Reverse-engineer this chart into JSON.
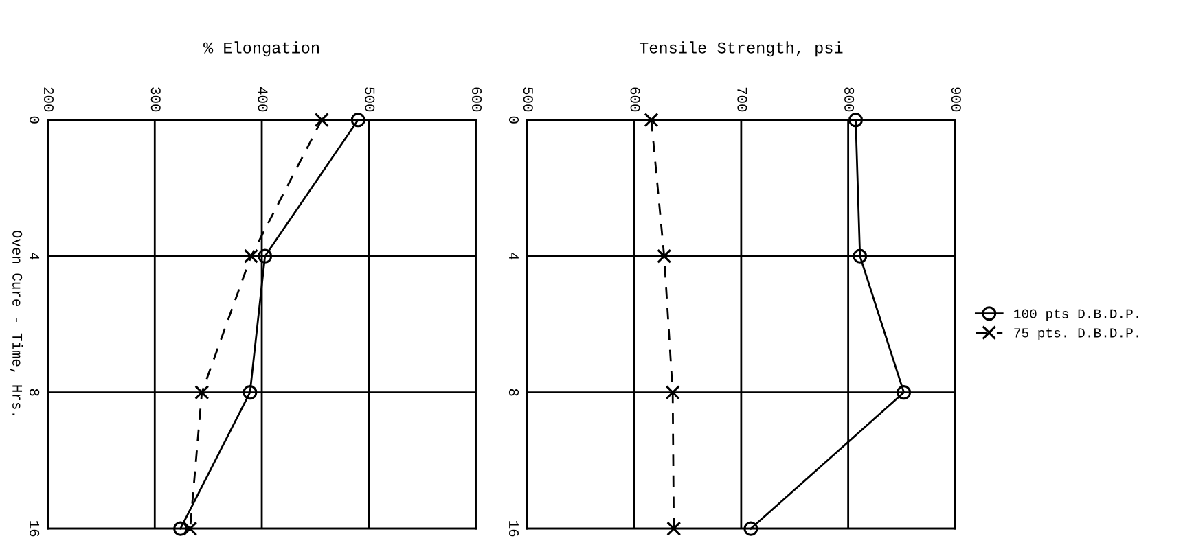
{
  "chart_data": [
    {
      "type": "line",
      "title": "% Elongation",
      "ylabel": "Oven Cure - Time, Hrs.",
      "orientation": "horizontal",
      "categories": [
        "0",
        "4",
        "8",
        "16"
      ],
      "xlim": [
        200,
        600
      ],
      "xticks": [
        200,
        300,
        400,
        500,
        600
      ],
      "grid": true,
      "series": [
        {
          "color": "#000000",
          "marker": "circle",
          "line_style": "solid",
          "values": [
            490,
            403,
            389,
            324
          ]
        },
        {
          "color": "#000000",
          "marker": "cross",
          "line_style": "dashed",
          "values": [
            456,
            390,
            344,
            333
          ]
        }
      ]
    },
    {
      "type": "line",
      "title": "Tensile Strength, psi",
      "orientation": "horizontal",
      "categories": [
        "0",
        "4",
        "8",
        "16"
      ],
      "xlim": [
        500,
        900
      ],
      "xticks": [
        500,
        600,
        700,
        800,
        900
      ],
      "grid": true,
      "legend": "right",
      "series": [
        {
          "name": "100 pts D.B.D.P.",
          "color": "#000000",
          "marker": "circle",
          "line_style": "solid",
          "values": [
            807,
            811,
            852,
            709
          ]
        },
        {
          "name": "75 pts. D.B.D.P.",
          "color": "#000000",
          "marker": "cross",
          "line_style": "dashed",
          "values": [
            616,
            628,
            636,
            637
          ]
        }
      ]
    }
  ]
}
